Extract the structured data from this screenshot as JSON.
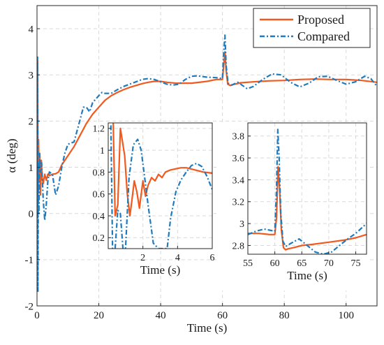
{
  "colors": {
    "proposed": "#F05A1E",
    "compared": "#1F7BBE",
    "grid": "#d9d9d9",
    "axis": "#262626"
  },
  "chart_data": [
    {
      "type": "line",
      "xlabel": "Time (s)",
      "ylabel": "α (deg)",
      "xlim": [
        0,
        110
      ],
      "ylim": [
        -2,
        4.5
      ],
      "xticks": [
        "0",
        "20",
        "40",
        "60",
        "80",
        "100"
      ],
      "yticks": [
        "-2",
        "-1",
        "0",
        "1",
        "2",
        "3",
        "4"
      ],
      "grid": true,
      "legend_position": "top-right",
      "series": [
        {
          "name": "Proposed",
          "style": "solid",
          "x": [
            0,
            0.2,
            0.35,
            0.5,
            0.7,
            0.9,
            1.1,
            1.4,
            1.7,
            2.0,
            2.5,
            3,
            3.5,
            4,
            5,
            6,
            7,
            8,
            10,
            12,
            14,
            16,
            18,
            20,
            22,
            24,
            26,
            28,
            30,
            32,
            34,
            36,
            38,
            40,
            42,
            45,
            50,
            55,
            58,
            60,
            60.4,
            60.8,
            61.2,
            61.7,
            62.5,
            64,
            66,
            70,
            75,
            80,
            85,
            90,
            95,
            100,
            105,
            110
          ],
          "y": [
            0,
            3.3,
            0.6,
            1.6,
            0.7,
            1.3,
            0.4,
            1.15,
            0.75,
            0.65,
            0.85,
            0.72,
            0.85,
            0.82,
            0.85,
            0.86,
            0.9,
            1.05,
            1.25,
            1.45,
            1.7,
            1.95,
            2.15,
            2.3,
            2.45,
            2.55,
            2.62,
            2.68,
            2.73,
            2.77,
            2.81,
            2.84,
            2.86,
            2.86,
            2.84,
            2.82,
            2.82,
            2.86,
            2.9,
            2.9,
            3.2,
            3.5,
            3.1,
            2.8,
            2.77,
            2.8,
            2.83,
            2.85,
            2.87,
            2.88,
            2.9,
            2.91,
            2.9,
            2.9,
            2.88,
            2.84
          ]
        },
        {
          "name": "Compared",
          "style": "dashdot",
          "x": [
            0,
            0.15,
            0.3,
            0.45,
            0.6,
            0.8,
            1.1,
            1.5,
            2.0,
            2.5,
            3,
            3.5,
            4,
            5,
            6,
            7,
            8,
            9,
            10,
            12,
            14,
            15,
            16,
            17,
            18,
            20,
            21,
            22,
            24,
            26,
            28,
            30,
            32,
            34,
            36,
            38,
            40,
            42,
            44,
            46,
            48,
            50,
            52,
            55,
            58,
            60,
            60.4,
            60.8,
            61.2,
            61.8,
            63,
            65,
            68,
            70,
            73,
            76,
            79,
            82,
            85,
            88,
            91,
            94,
            97,
            100,
            103,
            106,
            108,
            110
          ],
          "y": [
            0,
            3.4,
            -1.7,
            1.1,
            0.0,
            1.3,
            0.9,
            1.1,
            0.3,
            -0.15,
            0.2,
            0.7,
            0.9,
            0.85,
            0.4,
            0.6,
            1.0,
            1.3,
            1.5,
            1.55,
            2.05,
            2.3,
            2.3,
            2.2,
            2.4,
            2.55,
            2.62,
            2.6,
            2.6,
            2.68,
            2.75,
            2.8,
            2.85,
            2.9,
            2.92,
            2.9,
            2.85,
            2.8,
            2.78,
            2.8,
            2.9,
            2.97,
            2.98,
            2.95,
            2.94,
            2.92,
            3.5,
            3.86,
            3.2,
            2.82,
            2.78,
            2.84,
            2.7,
            2.75,
            2.9,
            3.02,
            3.0,
            2.84,
            2.74,
            2.82,
            2.96,
            2.97,
            2.88,
            2.8,
            2.85,
            2.97,
            2.92,
            2.75
          ]
        }
      ]
    },
    {
      "type": "line",
      "xlabel": "Time (s)",
      "ylabel": "",
      "xlim": [
        0,
        6
      ],
      "ylim": [
        0.1,
        1.25
      ],
      "xticks": [
        "2",
        "4",
        "6"
      ],
      "yticks": [
        "0.2",
        "0.4",
        "0.6",
        "0.8",
        "1",
        "1.2"
      ],
      "grid": true,
      "series": [
        {
          "name": "Proposed",
          "style": "solid",
          "x": [
            0,
            0.28,
            0.4,
            0.55,
            0.7,
            0.8,
            0.95,
            1.1,
            1.25,
            1.35,
            1.5,
            1.65,
            1.8,
            2.0,
            2.15,
            2.3,
            2.5,
            2.7,
            2.9,
            3.1,
            3.3,
            3.6,
            3.9,
            4.2,
            4.5,
            5.0,
            5.5,
            6.0
          ],
          "y": [
            1.3,
            1.3,
            0.4,
            0.5,
            1.2,
            1.1,
            0.95,
            0.6,
            0.4,
            0.52,
            0.72,
            0.62,
            0.47,
            0.72,
            0.58,
            0.68,
            0.75,
            0.72,
            0.78,
            0.75,
            0.8,
            0.82,
            0.83,
            0.84,
            0.84,
            0.82,
            0.8,
            0.79
          ]
        },
        {
          "name": "Compared",
          "style": "dashdot",
          "x": [
            0,
            0.15,
            0.25,
            0.4,
            0.55,
            0.7,
            0.85,
            1.0,
            1.2,
            1.45,
            1.7,
            1.9,
            2.1,
            2.3,
            2.6,
            2.9,
            3.2,
            3.4,
            3.6,
            3.9,
            4.2,
            4.5,
            4.8,
            5.1,
            5.4,
            5.7,
            6.0
          ],
          "y": [
            1.3,
            1.3,
            0.1,
            0.1,
            0.45,
            0.42,
            0.1,
            0.1,
            0.75,
            1.05,
            1.1,
            1.0,
            0.75,
            0.5,
            0.15,
            0.1,
            0.1,
            0.1,
            0.38,
            0.62,
            0.73,
            0.8,
            0.86,
            0.88,
            0.85,
            0.76,
            0.64
          ]
        }
      ]
    },
    {
      "type": "line",
      "xlabel": "Time (s)",
      "ylabel": "",
      "xlim": [
        55,
        77
      ],
      "ylim": [
        2.72,
        3.92
      ],
      "xticks": [
        "55",
        "60",
        "65",
        "70",
        "75"
      ],
      "yticks": [
        "2.8",
        "3",
        "3.2",
        "3.4",
        "3.6",
        "3.8"
      ],
      "grid": true,
      "series": [
        {
          "name": "Proposed",
          "style": "solid",
          "x": [
            55,
            57,
            59,
            60,
            60.3,
            60.6,
            60.9,
            61.2,
            61.6,
            62,
            62.5,
            63.5,
            65,
            67,
            70,
            73,
            75,
            77
          ],
          "y": [
            2.91,
            2.91,
            2.9,
            2.9,
            3.05,
            3.52,
            3.3,
            2.95,
            2.78,
            2.76,
            2.77,
            2.78,
            2.8,
            2.81,
            2.83,
            2.85,
            2.87,
            2.9
          ]
        },
        {
          "name": "Compared",
          "style": "dashdot",
          "x": [
            55,
            56.5,
            58,
            59,
            60,
            60.3,
            60.55,
            60.8,
            61.1,
            61.5,
            62,
            63,
            64.5,
            66,
            67.5,
            69,
            70.5,
            72,
            73.5,
            75,
            77
          ],
          "y": [
            2.9,
            2.93,
            2.95,
            2.94,
            2.93,
            3.3,
            3.86,
            3.6,
            3.1,
            2.84,
            2.79,
            2.82,
            2.86,
            2.8,
            2.74,
            2.72,
            2.74,
            2.8,
            2.86,
            2.91,
            3.0
          ]
        }
      ]
    }
  ]
}
